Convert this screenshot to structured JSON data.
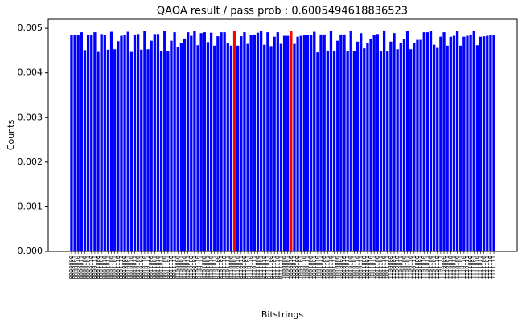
{
  "chart_data": {
    "type": "bar",
    "title": "QAOA result / pass prob : 0.6005494618836523",
    "x_label": "Bitstrings",
    "y_label": "Counts",
    "color": "#0000ff",
    "highlight": {
      "color": "#ff0000",
      "indices": [
        49,
        66
      ]
    },
    "ylim": [
      0,
      0.0052
    ],
    "yticks": [
      {
        "value": 0,
        "label": "0.000"
      },
      {
        "value": 0.001,
        "label": "0.001"
      },
      {
        "value": 0.002,
        "label": "0.002"
      },
      {
        "value": 0.003,
        "label": "0.003"
      },
      {
        "value": 0.004,
        "label": "0.004"
      },
      {
        "value": 0.005,
        "label": "0.005"
      }
    ],
    "categories": [
      "0000000",
      "0000001",
      "0000010",
      "0000011",
      "0000100",
      "0000101",
      "0000110",
      "0000111",
      "0001000",
      "0001001",
      "0001010",
      "0001011",
      "0001100",
      "0001101",
      "0001110",
      "0001111",
      "0010000",
      "0010001",
      "0010010",
      "0010011",
      "0010100",
      "0010101",
      "0010110",
      "0010111",
      "0011000",
      "0011001",
      "0011010",
      "0011011",
      "0011100",
      "0011101",
      "0011110",
      "0011111",
      "0100000",
      "0100001",
      "0100010",
      "0100011",
      "0100100",
      "0100101",
      "0100110",
      "0100111",
      "0101000",
      "0101001",
      "0101010",
      "0101011",
      "0101100",
      "0101101",
      "0101110",
      "0101111",
      "0110000",
      "0110001",
      "0110010",
      "0110011",
      "0110100",
      "0110101",
      "0110110",
      "0110111",
      "0111000",
      "0111001",
      "0111010",
      "0111011",
      "0111100",
      "0111101",
      "0111110",
      "0111111",
      "1000000",
      "1000001",
      "1000010",
      "1000011",
      "1000100",
      "1000101",
      "1000110",
      "1000111",
      "1001000",
      "1001001",
      "1001010",
      "1001011",
      "1001100",
      "1001101",
      "1001110",
      "1001111",
      "1010000",
      "1010001",
      "1010010",
      "1010011",
      "1010100",
      "1010101",
      "1010110",
      "1010111",
      "1011000",
      "1011001",
      "1011010",
      "1011011",
      "1011100",
      "1011101",
      "1011110",
      "1011111",
      "1100000",
      "1100001",
      "1100010",
      "1100011",
      "1100100",
      "1100101",
      "1100110",
      "1100111",
      "1101000",
      "1101001",
      "1101010",
      "1101011",
      "1101100",
      "1101101",
      "1101110",
      "1101111",
      "1110000",
      "1110001",
      "1110010",
      "1110011",
      "1110100",
      "1110101",
      "1110110",
      "1110111",
      "1111000",
      "1111001",
      "1111010",
      "1111011",
      "1111100",
      "1111101",
      "1111110",
      "1111111"
    ],
    "values": [
      0.00485,
      0.00485,
      0.00485,
      0.00491,
      0.00451,
      0.00484,
      0.00485,
      0.00491,
      0.00447,
      0.00487,
      0.00485,
      0.00452,
      0.00492,
      0.00453,
      0.00471,
      0.00483,
      0.00485,
      0.00492,
      0.00447,
      0.00486,
      0.00487,
      0.00452,
      0.00493,
      0.00453,
      0.00472,
      0.00487,
      0.00487,
      0.00449,
      0.00494,
      0.00449,
      0.00472,
      0.00491,
      0.00457,
      0.00466,
      0.00477,
      0.00491,
      0.00483,
      0.00493,
      0.00462,
      0.00489,
      0.00491,
      0.00469,
      0.0049,
      0.00461,
      0.00482,
      0.00491,
      0.00491,
      0.00466,
      0.00461,
      0.00494,
      0.00461,
      0.00482,
      0.00491,
      0.00465,
      0.00484,
      0.00486,
      0.0049,
      0.00493,
      0.00463,
      0.00491,
      0.0046,
      0.00481,
      0.00491,
      0.00465,
      0.00483,
      0.00483,
      0.00494,
      0.00465,
      0.00481,
      0.00483,
      0.00485,
      0.00484,
      0.00484,
      0.00492,
      0.00446,
      0.00486,
      0.00486,
      0.0045,
      0.00494,
      0.0045,
      0.00472,
      0.00486,
      0.00486,
      0.00448,
      0.00495,
      0.00448,
      0.0047,
      0.00489,
      0.00455,
      0.00467,
      0.00477,
      0.00484,
      0.00487,
      0.00448,
      0.00495,
      0.00448,
      0.0047,
      0.00489,
      0.00453,
      0.00467,
      0.00475,
      0.00493,
      0.00453,
      0.00466,
      0.00474,
      0.00474,
      0.00491,
      0.00491,
      0.00493,
      0.00463,
      0.00456,
      0.00481,
      0.00491,
      0.00461,
      0.00481,
      0.00483,
      0.00493,
      0.00461,
      0.00481,
      0.00483,
      0.00486,
      0.00493,
      0.00462,
      0.00481,
      0.00482,
      0.00483,
      0.00485,
      0.00485
    ]
  }
}
